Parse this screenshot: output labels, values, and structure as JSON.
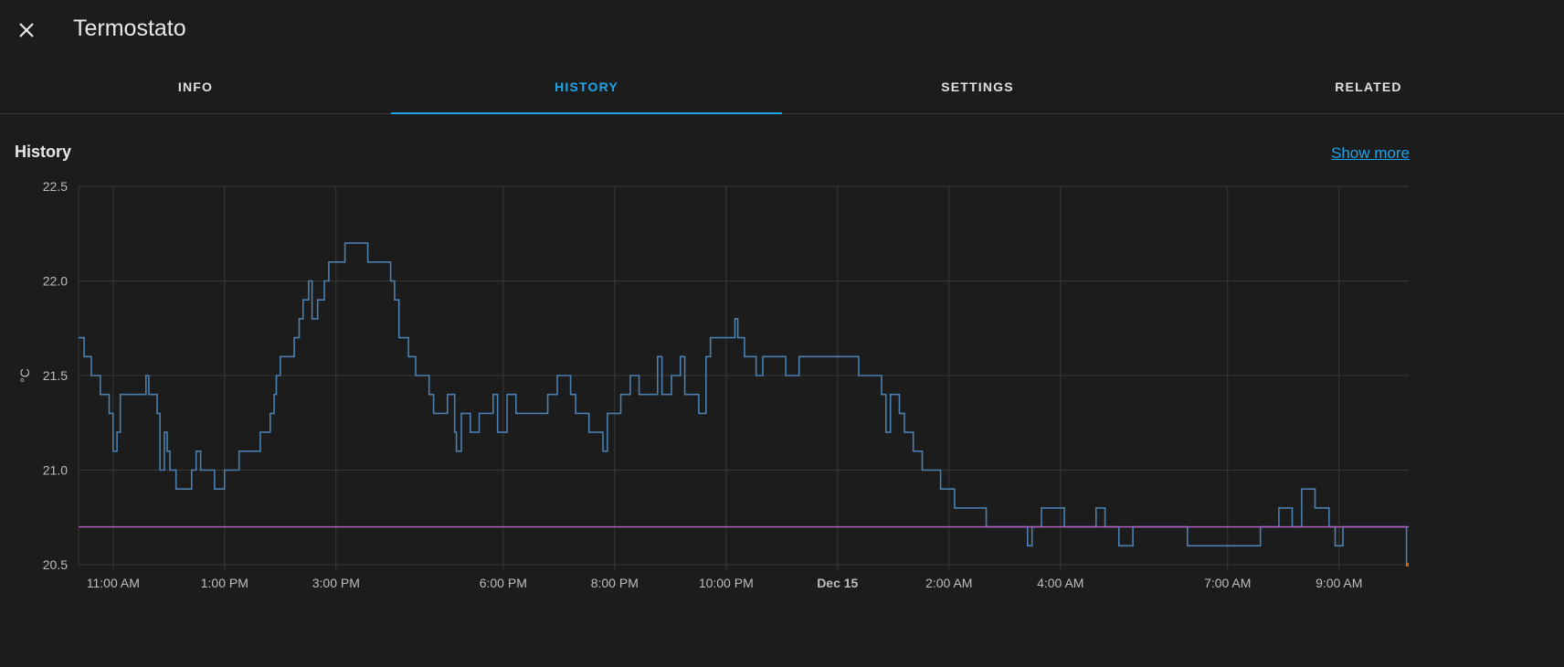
{
  "dialog": {
    "title": "Termostato",
    "close_icon": "close-icon"
  },
  "tabs": [
    {
      "label": "INFO",
      "active": false
    },
    {
      "label": "HISTORY",
      "active": true
    },
    {
      "label": "SETTINGS",
      "active": false
    },
    {
      "label": "RELATED",
      "active": false
    }
  ],
  "history": {
    "title": "History",
    "show_more": "Show more"
  },
  "colors": {
    "accent": "#1ea4e9",
    "current_temp": "#4a7fb0",
    "target_temp": "#b05cc0",
    "heating": "#c5650f"
  },
  "chart_data": {
    "type": "line",
    "step": true,
    "x_unit": "hours since Dec 14 00:00",
    "xlim": [
      10.38,
      34.25
    ],
    "ylim": [
      20.5,
      22.5
    ],
    "ylabel": "°C",
    "grid": true,
    "y_ticks": [
      20.5,
      21.0,
      21.5,
      22.0,
      22.5
    ],
    "y_tick_labels": [
      "20.5",
      "21.0",
      "21.5",
      "22.0",
      "22.5"
    ],
    "x_ticks": [
      {
        "hour": 11,
        "label": "11:00 AM",
        "bold": false
      },
      {
        "hour": 13,
        "label": "1:00 PM",
        "bold": false
      },
      {
        "hour": 15,
        "label": "3:00 PM",
        "bold": false
      },
      {
        "hour": 18,
        "label": "6:00 PM",
        "bold": false
      },
      {
        "hour": 20,
        "label": "8:00 PM",
        "bold": false
      },
      {
        "hour": 22,
        "label": "10:00 PM",
        "bold": false
      },
      {
        "hour": 24,
        "label": "Dec 15",
        "bold": true
      },
      {
        "hour": 26,
        "label": "2:00 AM",
        "bold": false
      },
      {
        "hour": 28,
        "label": "4:00 AM",
        "bold": false
      },
      {
        "hour": 31,
        "label": "7:00 AM",
        "bold": false
      },
      {
        "hour": 33,
        "label": "9:00 AM",
        "bold": false
      }
    ],
    "series": [
      {
        "name": "current_temperature",
        "color": "#4a7fb0",
        "points": [
          [
            10.38,
            21.7
          ],
          [
            10.48,
            21.6
          ],
          [
            10.61,
            21.5
          ],
          [
            10.77,
            21.4
          ],
          [
            10.93,
            21.3
          ],
          [
            11.0,
            21.1
          ],
          [
            11.07,
            21.2
          ],
          [
            11.13,
            21.4
          ],
          [
            11.59,
            21.5
          ],
          [
            11.64,
            21.4
          ],
          [
            11.79,
            21.3
          ],
          [
            11.84,
            21.0
          ],
          [
            11.92,
            21.2
          ],
          [
            11.97,
            21.1
          ],
          [
            12.02,
            21.0
          ],
          [
            12.13,
            20.9
          ],
          [
            12.41,
            21.0
          ],
          [
            12.49,
            21.1
          ],
          [
            12.57,
            21.0
          ],
          [
            12.82,
            20.9
          ],
          [
            13.0,
            21.0
          ],
          [
            13.26,
            21.1
          ],
          [
            13.64,
            21.2
          ],
          [
            13.82,
            21.3
          ],
          [
            13.89,
            21.4
          ],
          [
            13.93,
            21.5
          ],
          [
            14.0,
            21.6
          ],
          [
            14.25,
            21.7
          ],
          [
            14.34,
            21.8
          ],
          [
            14.41,
            21.9
          ],
          [
            14.51,
            22.0
          ],
          [
            14.57,
            21.8
          ],
          [
            14.67,
            21.9
          ],
          [
            14.79,
            22.0
          ],
          [
            14.87,
            22.1
          ],
          [
            15.16,
            22.2
          ],
          [
            15.57,
            22.1
          ],
          [
            15.98,
            22.0
          ],
          [
            16.05,
            21.9
          ],
          [
            16.13,
            21.7
          ],
          [
            16.3,
            21.6
          ],
          [
            16.43,
            21.5
          ],
          [
            16.67,
            21.4
          ],
          [
            16.75,
            21.3
          ],
          [
            17.0,
            21.4
          ],
          [
            17.13,
            21.2
          ],
          [
            17.16,
            21.1
          ],
          [
            17.25,
            21.3
          ],
          [
            17.41,
            21.2
          ],
          [
            17.57,
            21.3
          ],
          [
            17.82,
            21.4
          ],
          [
            17.9,
            21.2
          ],
          [
            18.07,
            21.4
          ],
          [
            18.23,
            21.3
          ],
          [
            18.8,
            21.4
          ],
          [
            18.97,
            21.5
          ],
          [
            19.21,
            21.4
          ],
          [
            19.3,
            21.3
          ],
          [
            19.54,
            21.2
          ],
          [
            19.79,
            21.1
          ],
          [
            19.87,
            21.3
          ],
          [
            20.11,
            21.4
          ],
          [
            20.28,
            21.5
          ],
          [
            20.44,
            21.4
          ],
          [
            20.77,
            21.6
          ],
          [
            20.85,
            21.4
          ],
          [
            21.02,
            21.5
          ],
          [
            21.18,
            21.6
          ],
          [
            21.26,
            21.4
          ],
          [
            21.51,
            21.3
          ],
          [
            21.64,
            21.6
          ],
          [
            21.72,
            21.7
          ],
          [
            22.16,
            21.8
          ],
          [
            22.21,
            21.7
          ],
          [
            22.33,
            21.6
          ],
          [
            22.54,
            21.5
          ],
          [
            22.66,
            21.6
          ],
          [
            23.07,
            21.5
          ],
          [
            23.31,
            21.6
          ],
          [
            24.38,
            21.5
          ],
          [
            24.79,
            21.4
          ],
          [
            24.87,
            21.2
          ],
          [
            24.95,
            21.4
          ],
          [
            25.11,
            21.3
          ],
          [
            25.2,
            21.2
          ],
          [
            25.36,
            21.1
          ],
          [
            25.52,
            21.0
          ],
          [
            25.85,
            20.9
          ],
          [
            26.1,
            20.8
          ],
          [
            26.67,
            20.7
          ],
          [
            27.41,
            20.6
          ],
          [
            27.49,
            20.7
          ],
          [
            27.66,
            20.8
          ],
          [
            28.07,
            20.7
          ],
          [
            28.64,
            20.8
          ],
          [
            28.8,
            20.7
          ],
          [
            29.05,
            20.6
          ],
          [
            29.3,
            20.7
          ],
          [
            30.28,
            20.6
          ],
          [
            31.59,
            20.7
          ],
          [
            31.92,
            20.8
          ],
          [
            32.16,
            20.7
          ],
          [
            32.33,
            20.9
          ],
          [
            32.57,
            20.8
          ],
          [
            32.82,
            20.7
          ],
          [
            32.93,
            20.6
          ],
          [
            33.07,
            20.7
          ],
          [
            34.21,
            20.5
          ],
          [
            34.25,
            20.5
          ]
        ]
      },
      {
        "name": "target_temperature",
        "color": "#b05cc0",
        "points": [
          [
            10.38,
            20.7
          ],
          [
            34.25,
            20.7
          ]
        ]
      },
      {
        "name": "heating",
        "color": "#c5650f",
        "points": [
          [
            34.2,
            20.5
          ],
          [
            34.25,
            20.5
          ]
        ]
      }
    ]
  }
}
